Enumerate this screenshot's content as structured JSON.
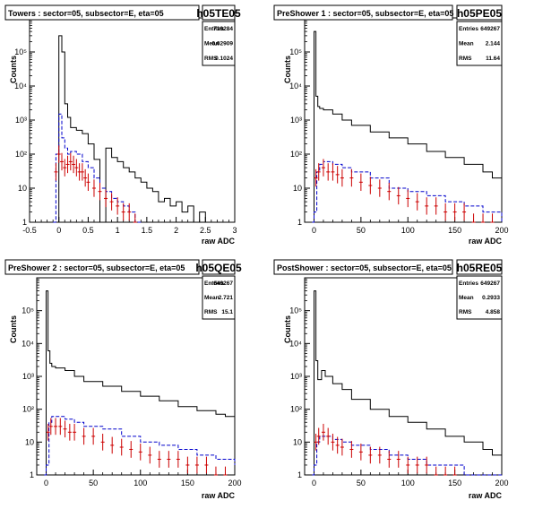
{
  "colors": {
    "total": "#000000",
    "blue": "#0000cc",
    "red": "#cc0000",
    "frame": "#000000",
    "background": "#ffffff"
  },
  "chart_data": [
    {
      "type": "histogram",
      "title": "Towers : sector=05, subsector=E, eta=05",
      "histname": "h05TE05",
      "xlabel": "raw ADC",
      "ylabel": "Counts",
      "xlim": [
        -0.5,
        3
      ],
      "ylim": [
        1,
        1000000
      ],
      "log_y": true,
      "x_ticks": [
        -0.5,
        0,
        0.5,
        1,
        1.5,
        2,
        2.5,
        3
      ],
      "x_tick_labels": [
        "-0.5",
        "0",
        "0.5",
        "1",
        "1.5",
        "2",
        "2.5",
        "3"
      ],
      "y_ticks": [
        1,
        10,
        100,
        1000,
        10000,
        100000
      ],
      "y_tick_labels": [
        "1",
        "10",
        "10²",
        "10³",
        "10⁴",
        "10⁵"
      ],
      "stats": {
        "entries_label": "Entries",
        "entries": "719284",
        "mean_label": "Mean",
        "mean": "0.02909",
        "rms_label": "RMS",
        "rms": "0.1024"
      },
      "series": [
        {
          "style": "solid-step",
          "color": "#000000",
          "x": [
            -0.1,
            0.0,
            0.05,
            0.1,
            0.15,
            0.2,
            0.3,
            0.4,
            0.5,
            0.6,
            0.7,
            0.8,
            0.9,
            1.0,
            1.1,
            1.2,
            1.3,
            1.4,
            1.5,
            1.6,
            1.7,
            1.8,
            1.9,
            2.0,
            2.1,
            2.2,
            2.3,
            2.4,
            2.5
          ],
          "values": [
            1,
            300000,
            100000,
            3000,
            1200,
            600,
            500,
            400,
            200,
            70,
            1,
            150,
            80,
            60,
            40,
            30,
            20,
            15,
            10,
            8,
            4,
            5,
            3,
            4,
            2,
            3,
            1,
            2,
            1
          ]
        },
        {
          "style": "dashed-step",
          "color": "#0000cc",
          "x": [
            -0.1,
            -0.05,
            0.0,
            0.05,
            0.1,
            0.15,
            0.2,
            0.3,
            0.4,
            0.5,
            0.6,
            0.7,
            0.8,
            0.9,
            1.0,
            1.1,
            1.2,
            1.3,
            1.4
          ],
          "values": [
            1,
            100,
            1500,
            300,
            150,
            100,
            120,
            100,
            60,
            40,
            20,
            10,
            8,
            5,
            4,
            3,
            2,
            1,
            1
          ]
        },
        {
          "style": "error-points",
          "color": "#cc0000",
          "x": [
            -0.05,
            0.0,
            0.05,
            0.1,
            0.15,
            0.2,
            0.25,
            0.3,
            0.35,
            0.4,
            0.45,
            0.5,
            0.6,
            0.7,
            0.8,
            0.9,
            1.0,
            1.1,
            1.2,
            1.3
          ],
          "values": [
            30,
            100,
            60,
            40,
            50,
            60,
            50,
            40,
            30,
            30,
            20,
            15,
            10,
            8,
            5,
            4,
            3,
            2,
            2,
            1
          ]
        }
      ]
    },
    {
      "type": "histogram",
      "title": "PreShower 1 : sector=05, subsector=E, eta=05",
      "histname": "h05PE05",
      "xlabel": "raw ADC",
      "ylabel": "Counts",
      "xlim": [
        -10,
        200
      ],
      "ylim": [
        1,
        1000000
      ],
      "log_y": true,
      "x_ticks": [
        0,
        50,
        100,
        150,
        200
      ],
      "x_tick_labels": [
        "0",
        "50",
        "100",
        "150",
        "200"
      ],
      "y_ticks": [
        1,
        10,
        100,
        1000,
        10000,
        100000
      ],
      "y_tick_labels": [
        "1",
        "10",
        "10²",
        "10³",
        "10⁴",
        "10⁵"
      ],
      "stats": {
        "entries_label": "Entries",
        "entries": "649267",
        "mean_label": "Mean",
        "mean": "2.144",
        "rms_label": "RMS",
        "rms": "11.64"
      },
      "series": [
        {
          "style": "solid-step",
          "color": "#000000",
          "x": [
            -2,
            0,
            2,
            4,
            6,
            10,
            20,
            30,
            40,
            60,
            80,
            100,
            120,
            140,
            160,
            180,
            190,
            200
          ],
          "values": [
            1,
            400000,
            5000,
            2500,
            2200,
            2000,
            1500,
            1000,
            700,
            450,
            300,
            200,
            120,
            80,
            50,
            30,
            20,
            10
          ]
        },
        {
          "style": "dashed-step",
          "color": "#0000cc",
          "x": [
            -2,
            0,
            3,
            6,
            10,
            20,
            30,
            40,
            60,
            80,
            100,
            120,
            140,
            160,
            180,
            200
          ],
          "values": [
            1,
            2,
            30,
            50,
            60,
            50,
            40,
            30,
            20,
            10,
            8,
            6,
            4,
            3,
            2,
            1
          ]
        },
        {
          "style": "error-points",
          "color": "#cc0000",
          "x": [
            2,
            5,
            10,
            15,
            20,
            25,
            30,
            40,
            50,
            60,
            70,
            80,
            90,
            100,
            110,
            120,
            130,
            140,
            150,
            160,
            170,
            180,
            190
          ],
          "values": [
            20,
            30,
            40,
            30,
            30,
            25,
            20,
            20,
            15,
            12,
            10,
            8,
            6,
            5,
            4,
            3,
            3,
            2,
            2,
            2,
            1,
            1,
            1
          ]
        }
      ]
    },
    {
      "type": "histogram",
      "title": "PreShower 2 : sector=05, subsector=E, eta=05",
      "histname": "h05QE05",
      "xlabel": "raw ADC",
      "ylabel": "Counts",
      "xlim": [
        -10,
        200
      ],
      "ylim": [
        1,
        1000000
      ],
      "log_y": true,
      "x_ticks": [
        0,
        50,
        100,
        150,
        200
      ],
      "x_tick_labels": [
        "0",
        "50",
        "100",
        "150",
        "200"
      ],
      "y_ticks": [
        1,
        10,
        100,
        1000,
        10000,
        100000
      ],
      "y_tick_labels": [
        "1",
        "10",
        "10²",
        "10³",
        "10⁴",
        "10⁵"
      ],
      "stats": {
        "entries_label": "Entries",
        "entries": "649267",
        "mean_label": "Mean",
        "mean": "2.721",
        "rms_label": "RMS",
        "rms": "15.1"
      },
      "series": [
        {
          "style": "solid-step",
          "color": "#000000",
          "x": [
            -2,
            0,
            2,
            4,
            6,
            10,
            20,
            30,
            40,
            60,
            80,
            100,
            120,
            140,
            160,
            180,
            190,
            200
          ],
          "values": [
            1,
            400000,
            6000,
            2500,
            2000,
            1800,
            1500,
            1000,
            700,
            500,
            350,
            250,
            180,
            120,
            90,
            70,
            60,
            50
          ]
        },
        {
          "style": "dashed-step",
          "color": "#0000cc",
          "x": [
            -2,
            0,
            3,
            6,
            10,
            20,
            30,
            40,
            60,
            80,
            100,
            120,
            140,
            160,
            180,
            200
          ],
          "values": [
            1,
            2,
            40,
            60,
            60,
            50,
            40,
            30,
            25,
            15,
            10,
            8,
            6,
            4,
            3,
            2
          ]
        },
        {
          "style": "error-points",
          "color": "#cc0000",
          "x": [
            2,
            5,
            10,
            15,
            20,
            25,
            30,
            40,
            50,
            60,
            70,
            80,
            90,
            100,
            110,
            120,
            130,
            140,
            150,
            160,
            170,
            180,
            190
          ],
          "values": [
            20,
            30,
            30,
            30,
            25,
            20,
            20,
            15,
            15,
            10,
            8,
            7,
            6,
            5,
            4,
            3,
            3,
            3,
            2,
            2,
            2,
            1,
            1
          ]
        }
      ]
    },
    {
      "type": "histogram",
      "title": "PostShower : sector=05, subsector=E, eta=05",
      "histname": "h05RE05",
      "xlabel": "raw ADC",
      "ylabel": "Counts",
      "xlim": [
        -10,
        200
      ],
      "ylim": [
        1,
        1000000
      ],
      "log_y": true,
      "x_ticks": [
        0,
        50,
        100,
        150,
        200
      ],
      "x_tick_labels": [
        "0",
        "50",
        "100",
        "150",
        "200"
      ],
      "y_ticks": [
        1,
        10,
        100,
        1000,
        10000,
        100000
      ],
      "y_tick_labels": [
        "1",
        "10",
        "10²",
        "10³",
        "10⁴",
        "10⁵"
      ],
      "stats": {
        "entries_label": "Entries",
        "entries": "649267",
        "mean_label": "Mean",
        "mean": "0.2933",
        "rms_label": "RMS",
        "rms": "4.858"
      },
      "series": [
        {
          "style": "solid-step",
          "color": "#000000",
          "x": [
            -2,
            0,
            2,
            4,
            8,
            12,
            20,
            30,
            40,
            60,
            80,
            100,
            120,
            140,
            160,
            180,
            190,
            200
          ],
          "values": [
            1,
            400000,
            3000,
            800,
            1500,
            1000,
            600,
            400,
            200,
            100,
            60,
            40,
            25,
            15,
            10,
            6,
            4,
            2
          ]
        },
        {
          "style": "dashed-step",
          "color": "#0000cc",
          "x": [
            -2,
            0,
            3,
            6,
            10,
            20,
            30,
            40,
            60,
            80,
            100,
            120,
            140,
            160,
            180,
            200
          ],
          "values": [
            1,
            2,
            10,
            15,
            15,
            12,
            10,
            8,
            6,
            4,
            3,
            2,
            2,
            1,
            1,
            1
          ]
        },
        {
          "style": "error-points",
          "color": "#cc0000",
          "x": [
            2,
            5,
            10,
            15,
            20,
            25,
            30,
            40,
            50,
            60,
            70,
            80,
            90,
            100,
            110,
            120,
            130,
            140,
            150
          ],
          "values": [
            10,
            15,
            20,
            15,
            10,
            8,
            7,
            6,
            5,
            4,
            4,
            3,
            3,
            2,
            2,
            2,
            1,
            1,
            1
          ]
        }
      ]
    }
  ]
}
